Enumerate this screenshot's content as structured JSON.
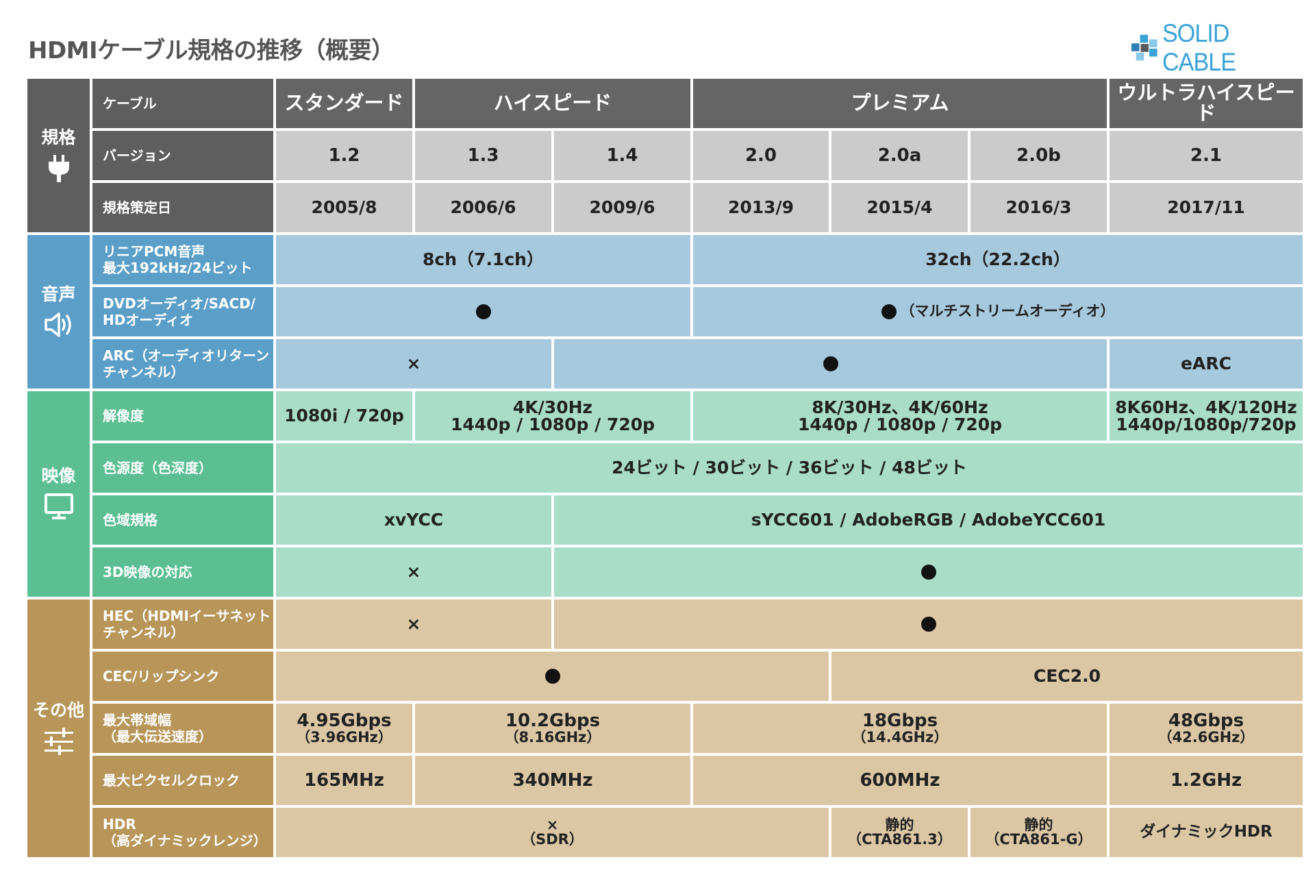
{
  "title": "HDMIケーブル規格の推移（概要）",
  "logo": {
    "text": "SOLID CABLE",
    "colors": [
      "#2f7fb4",
      "#39a2d6",
      "#8cc8e8",
      "#5a5a5a"
    ]
  },
  "sections": {
    "spec": "規格",
    "audio": "音声",
    "video": "映像",
    "other": "その他"
  },
  "labels": {
    "cable": "ケーブル",
    "version": "バージョン",
    "date": "規格策定日",
    "pcm": [
      "リニアPCM音声",
      "最大192kHz/24ビット"
    ],
    "dvd": [
      "DVDオーディオ/SACD/",
      "HDオーディオ"
    ],
    "arc": [
      "ARC（オーディオリターン",
      "チャンネル）"
    ],
    "resolution": "解像度",
    "color_depth": "色源度（色深度）",
    "gamut": "色域規格",
    "d3": "3D映像の対応",
    "hec": [
      "HEC（HDMIイーサネット",
      "チャンネル）"
    ],
    "cec": "CEC/リップシンク",
    "bandwidth": [
      "最大帯域幅",
      "（最大伝送速度）"
    ],
    "pixel_clock": "最大ピクセルクロック",
    "hdr": [
      "HDR",
      "（高ダイナミックレンジ）"
    ]
  },
  "cables": [
    "スタンダード",
    "ハイスピード",
    "プレミアム",
    "ウルトラハイスピード"
  ],
  "versions": [
    "1.2",
    "1.3",
    "1.4",
    "2.0",
    "2.0a",
    "2.0b",
    "2.1"
  ],
  "dates": [
    "2005/8",
    "2006/6",
    "2009/6",
    "2013/9",
    "2015/4",
    "2016/3",
    "2017/11"
  ],
  "values": {
    "cross": "×",
    "pcm": [
      "8ch（7.1ch）",
      "32ch（22.2ch）"
    ],
    "dvd_multi": "（マルチストリームオーディオ）",
    "earc": "eARC",
    "res": [
      "1080i / 720p",
      [
        "4K/30Hz",
        "1440p / 1080p / 720p"
      ],
      [
        "8K/30Hz、4K/60Hz",
        "1440p / 1080p / 720p"
      ],
      [
        "8K60Hz、4K/120Hz",
        "1440p/1080p/720p"
      ]
    ],
    "depth": "24ビット / 30ビット / 36ビット / 48ビット",
    "gamut": [
      "xvYCC",
      "sYCC601 / AdobeRGB / AdobeYCC601"
    ],
    "cec2": "CEC2.0",
    "bw": [
      [
        "4.95Gbps",
        "（3.96GHz）"
      ],
      [
        "10.2Gbps",
        "（8.16GHz）"
      ],
      [
        "18Gbps",
        "（14.4GHz）"
      ],
      [
        "48Gbps",
        "（42.6GHz）"
      ]
    ],
    "clock": [
      "165MHz",
      "340MHz",
      "600MHz",
      "1.2GHz"
    ],
    "hdr": [
      [
        "×",
        "（SDR）"
      ],
      [
        "静的",
        "（CTA861.3）"
      ],
      [
        "静的",
        "（CTA861-G）"
      ],
      "ダイナミックHDR"
    ]
  }
}
